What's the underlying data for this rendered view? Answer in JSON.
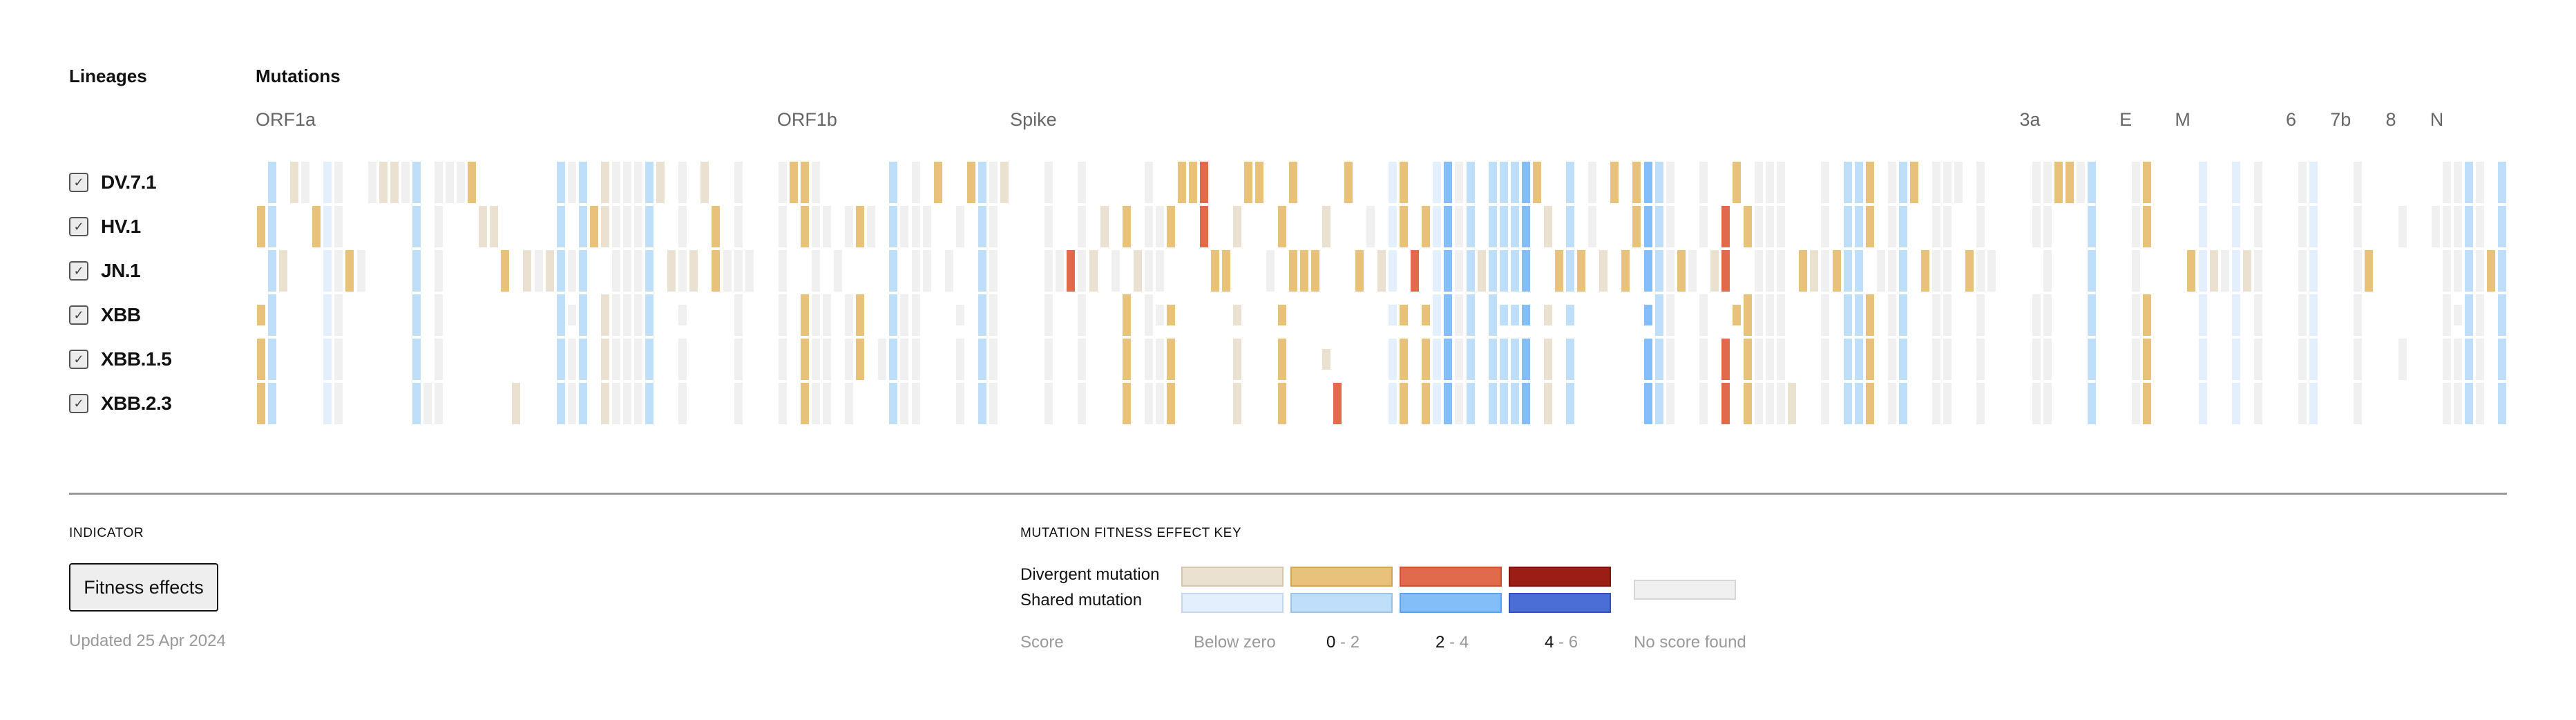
{
  "headers": {
    "lineages": "Lineages",
    "mutations": "Mutations"
  },
  "genes": [
    {
      "label": "ORF1a",
      "col": 0
    },
    {
      "label": "ORF1b",
      "col": 47
    },
    {
      "label": "Spike",
      "col": 68
    },
    {
      "label": "3a",
      "col": 159
    },
    {
      "label": "E",
      "col": 168
    },
    {
      "label": "M",
      "col": 173
    },
    {
      "label": "6",
      "col": 183
    },
    {
      "label": "7b",
      "col": 187
    },
    {
      "label": "8",
      "col": 192
    },
    {
      "label": "N",
      "col": 196
    }
  ],
  "lineages": [
    {
      "name": "DV.7.1",
      "checked": true
    },
    {
      "name": "HV.1",
      "checked": true
    },
    {
      "name": "JN.1",
      "checked": true
    },
    {
      "name": "XBB",
      "checked": true
    },
    {
      "name": "XBB.1.5",
      "checked": true
    },
    {
      "name": "XBB.2.3",
      "checked": true
    }
  ],
  "indicator": {
    "title": "INDICATOR",
    "button_label": "Fitness effects",
    "updated": "Updated 25 Apr 2024"
  },
  "legend": {
    "title": "MUTATION FITNESS EFFECT KEY",
    "divergent_label": "Divergent mutation",
    "shared_label": "Shared mutation",
    "score_label": "Score",
    "bins": [
      {
        "label": "Below zero",
        "low": null,
        "high": null
      },
      {
        "label": "0 - 2",
        "low": "0",
        "high": "2"
      },
      {
        "label": "2 - 4",
        "low": "2",
        "high": "4"
      },
      {
        "label": "4 - 6",
        "low": "4",
        "high": "6"
      }
    ],
    "no_score_label": "No score found"
  },
  "colors": {
    "b": {
      "fill": "#ebe1d1",
      "stroke": "#d6c6ae"
    },
    "o": {
      "fill": "#e8c27a",
      "stroke": "#d2a55a"
    },
    "r": {
      "fill": "#e26a4c",
      "stroke": "#cc5034"
    },
    "x": {
      "fill": "#9b1e16",
      "stroke": "#7f140e"
    },
    "l": {
      "fill": "#e3effc",
      "stroke": "#c4d6ea"
    },
    "s": {
      "fill": "#bedefa",
      "stroke": "#9cc3e6"
    },
    "m": {
      "fill": "#84bef9",
      "stroke": "#5aa2ef"
    },
    "d": {
      "fill": "#4a6dd6",
      "stroke": "#2f52bd"
    },
    "n": {
      "fill": "#f0f0f0",
      "stroke": "#d6d6d6"
    }
  },
  "chart_data": {
    "type": "heatmap",
    "title": "Mutations",
    "row_axis_label": "Lineages",
    "rows": [
      "DV.7.1",
      "HV.1",
      "JN.1",
      "XBB",
      "XBB.1.5",
      "XBB.2.3"
    ],
    "num_columns": 203,
    "code_legend": {
      ".": "no mutation",
      "n": "no score found",
      "b": "divergent, below zero",
      "o": "divergent, 0-2",
      "r": "divergent, 2-4",
      "x": "divergent, 4-6",
      "l": "shared, below zero",
      "s": "shared, 0-2",
      "m": "shared, 2-4",
      "d": "shared, 4-6",
      "uppercase": "partial-height cell"
    },
    "columns": [
      [
        0,
        ".o.Ooo"
      ],
      [
        1,
        "ssssss"
      ],
      [
        2,
        "..b..."
      ],
      [
        3,
        "b....."
      ],
      [
        4,
        "n....."
      ],
      [
        5,
        ".o...."
      ],
      [
        6,
        "llllll"
      ],
      [
        7,
        "nnnnnn"
      ],
      [
        8,
        "..o..."
      ],
      [
        9,
        "..n..."
      ],
      [
        10,
        "n....."
      ],
      [
        11,
        "b....."
      ],
      [
        12,
        "b....."
      ],
      [
        13,
        "n....."
      ],
      [
        14,
        "ssssss"
      ],
      [
        15,
        ".....n"
      ],
      [
        16,
        "nnnnnn"
      ],
      [
        17,
        "n....."
      ],
      [
        18,
        "n....."
      ],
      [
        19,
        "o....."
      ],
      [
        20,
        ".b...."
      ],
      [
        21,
        ".b...."
      ],
      [
        22,
        "..o..."
      ],
      [
        23,
        ".....b"
      ],
      [
        24,
        "..b..."
      ],
      [
        25,
        "..n..."
      ],
      [
        26,
        "..b..."
      ],
      [
        27,
        "ssssss"
      ],
      [
        28,
        "n.nNnn"
      ],
      [
        29,
        "ssssss"
      ],
      [
        30,
        ".o...."
      ],
      [
        31,
        "bb.bbb"
      ],
      [
        32,
        "nnnnnn"
      ],
      [
        33,
        "nnnnnn"
      ],
      [
        34,
        "nnnnnn"
      ],
      [
        35,
        "ssssss"
      ],
      [
        36,
        "b....."
      ],
      [
        37,
        "..b..."
      ],
      [
        38,
        "nnnNnn"
      ],
      [
        39,
        "..b..."
      ],
      [
        40,
        "b....."
      ],
      [
        41,
        ".oo..."
      ],
      [
        42,
        "..n..."
      ],
      [
        43,
        "nnnnnn"
      ],
      [
        44,
        "..n..."
      ],
      [
        47,
        "nnnnnn"
      ],
      [
        48,
        "o....."
      ],
      [
        49,
        "oo.ooo"
      ],
      [
        50,
        "nnnnnn"
      ],
      [
        51,
        ".n.nnn"
      ],
      [
        52,
        "..n..."
      ],
      [
        53,
        ".n.nnn"
      ],
      [
        54,
        ".o.oo."
      ],
      [
        55,
        ".n...."
      ],
      [
        56,
        "....n."
      ],
      [
        57,
        "ssssss"
      ],
      [
        58,
        ".n.nnn"
      ],
      [
        59,
        "nnnnnn"
      ],
      [
        60,
        ".nn..."
      ],
      [
        61,
        "o....."
      ],
      [
        62,
        "..n..."
      ],
      [
        63,
        ".n.Nnn"
      ],
      [
        64,
        "o....."
      ],
      [
        65,
        "ssssss"
      ],
      [
        66,
        "nnnnnn"
      ],
      [
        67,
        "b....."
      ],
      [
        71,
        "nnnnnn"
      ],
      [
        72,
        "..n..."
      ],
      [
        73,
        "..r..."
      ],
      [
        74,
        "nnnnnn"
      ],
      [
        75,
        "..b..."
      ],
      [
        76,
        ".b...."
      ],
      [
        77,
        "..n..."
      ],
      [
        78,
        ".o.ooo"
      ],
      [
        79,
        "..b..."
      ],
      [
        80,
        "nnnnnn"
      ],
      [
        81,
        ".nnNnn"
      ],
      [
        82,
        ".o.Ooo"
      ],
      [
        83,
        "o....."
      ],
      [
        84,
        "o....."
      ],
      [
        85,
        "rr...."
      ],
      [
        86,
        "..o..."
      ],
      [
        87,
        "..o..."
      ],
      [
        88,
        ".b.Bbb"
      ],
      [
        89,
        "o....."
      ],
      [
        90,
        "o....."
      ],
      [
        91,
        "..n..."
      ],
      [
        92,
        ".o.Ooo"
      ],
      [
        93,
        "o.o..."
      ],
      [
        94,
        "..o..."
      ],
      [
        95,
        "..o..."
      ],
      [
        96,
        ".b..B."
      ],
      [
        97,
        ".....r"
      ],
      [
        98,
        "o....."
      ],
      [
        99,
        "..o..."
      ],
      [
        100,
        ".n...."
      ],
      [
        101,
        "..b..."
      ],
      [
        102,
        "lllLll"
      ],
      [
        103,
        "oo.Ooo"
      ],
      [
        104,
        "..r..."
      ],
      [
        105,
        ".o.Ooo"
      ],
      [
        106,
        "llllll"
      ],
      [
        107,
        "mmmmmm"
      ],
      [
        108,
        "nnnnnn"
      ],
      [
        109,
        "ssssss"
      ],
      [
        110,
        "..b..."
      ],
      [
        111,
        "ssssss"
      ],
      [
        112,
        "sssSss"
      ],
      [
        113,
        "sssSss"
      ],
      [
        114,
        "mmmMmm"
      ],
      [
        115,
        "o....."
      ],
      [
        116,
        ".b.Bbb"
      ],
      [
        117,
        "..o..."
      ],
      [
        118,
        "sssSss"
      ],
      [
        119,
        "..o..."
      ],
      [
        120,
        "nn...."
      ],
      [
        121,
        "..b..."
      ],
      [
        122,
        "o....."
      ],
      [
        123,
        "..o..."
      ],
      [
        124,
        "oo...."
      ],
      [
        125,
        "mmmMmm"
      ],
      [
        126,
        "ssssss"
      ],
      [
        127,
        "nnnnnn"
      ],
      [
        128,
        "..o..."
      ],
      [
        129,
        "..n..."
      ],
      [
        130,
        "nn.nnn"
      ],
      [
        131,
        "..b..."
      ],
      [
        132,
        ".rr.rr"
      ],
      [
        133,
        "o..O.."
      ],
      [
        134,
        ".o.ooo"
      ],
      [
        135,
        "nnnnnn"
      ],
      [
        136,
        "nnnnnn"
      ],
      [
        137,
        "nnnnnn"
      ],
      [
        138,
        ".....b"
      ],
      [
        139,
        "..o..."
      ],
      [
        140,
        "..b..."
      ],
      [
        141,
        "nnnnnn"
      ],
      [
        142,
        "..o..."
      ],
      [
        143,
        "ssssss"
      ],
      [
        144,
        "ssssss"
      ],
      [
        145,
        "oo.ooo"
      ],
      [
        146,
        "..n..."
      ],
      [
        147,
        "nnnnnn"
      ],
      [
        148,
        "ssssss"
      ],
      [
        149,
        "o....."
      ],
      [
        150,
        "..o..."
      ],
      [
        151,
        "nnnnnn"
      ],
      [
        152,
        "nnnnnn"
      ],
      [
        153,
        "n....."
      ],
      [
        154,
        "..o..."
      ],
      [
        155,
        "nnnnnn"
      ],
      [
        156,
        "..n..."
      ],
      [
        160,
        "nn.nnn"
      ],
      [
        161,
        "nnnnnn"
      ],
      [
        162,
        "o....."
      ],
      [
        163,
        "o....."
      ],
      [
        164,
        "n....."
      ],
      [
        165,
        "ssssss"
      ],
      [
        169,
        "nnnnnn"
      ],
      [
        170,
        "oo.ooo"
      ],
      [
        174,
        "..o..."
      ],
      [
        175,
        "llllll"
      ],
      [
        176,
        "..b..."
      ],
      [
        177,
        "..n..."
      ],
      [
        178,
        "llllll"
      ],
      [
        179,
        "..b..."
      ],
      [
        180,
        "nnnnnn"
      ],
      [
        184,
        "nnnnnn"
      ],
      [
        185,
        "llllll"
      ],
      [
        189,
        "nnnnnn"
      ],
      [
        190,
        "..o..."
      ],
      [
        193,
        ".n..n."
      ],
      [
        196,
        ".n...."
      ],
      [
        197,
        "nnnnnn"
      ],
      [
        198,
        "nnnNnn"
      ],
      [
        199,
        "ssssss"
      ],
      [
        200,
        "nnnnnn"
      ],
      [
        201,
        "..o..."
      ],
      [
        202,
        "ssssss"
      ]
    ]
  }
}
